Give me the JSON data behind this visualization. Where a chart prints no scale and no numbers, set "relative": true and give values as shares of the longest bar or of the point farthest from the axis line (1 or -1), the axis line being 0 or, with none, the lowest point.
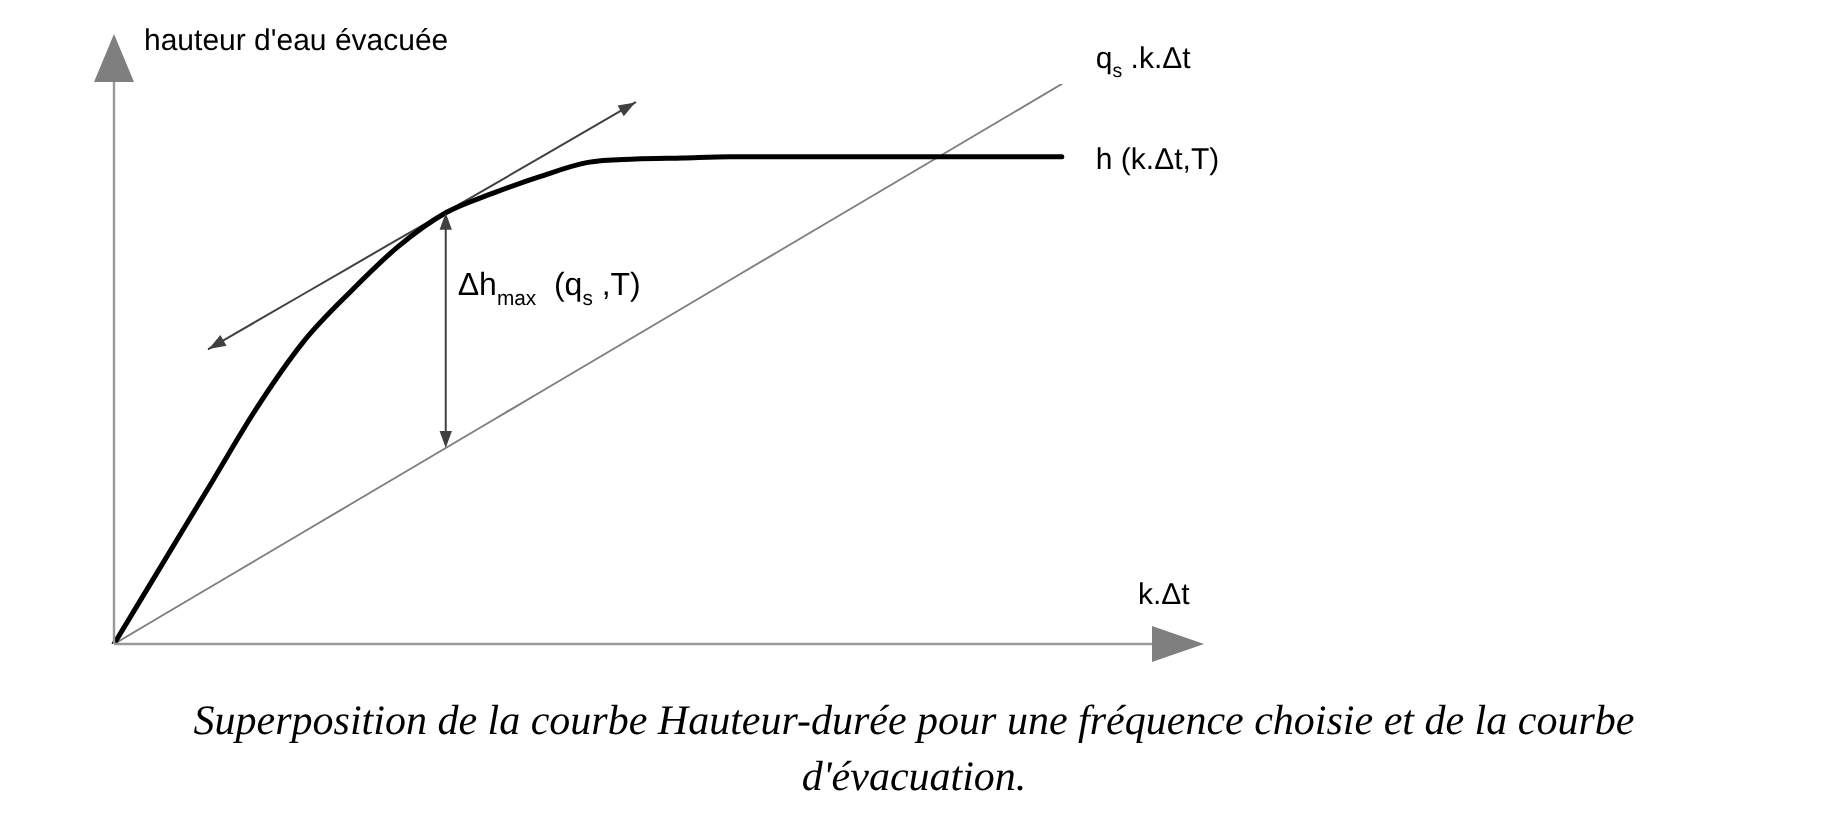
{
  "chart_data": {
    "type": "line",
    "relative": true,
    "xlabel": "k.Δt",
    "ylabel": "hauteur d'eau évacuée",
    "legend": false,
    "marker": "none",
    "categories": [
      null,
      null,
      null,
      null,
      null,
      null,
      null,
      null,
      null,
      null,
      null,
      null,
      null,
      null,
      null,
      null,
      null,
      null,
      null,
      null,
      null,
      null,
      null,
      null
    ],
    "series": [
      {
        "name": "h (k.Δt,T)",
        "color": "#000000",
        "values": [
          0,
          0.14,
          0.28,
          0.42,
          0.54,
          0.63,
          0.71,
          0.77,
          0.805,
          0.835,
          0.86,
          0.866,
          0.868,
          0.87,
          0.87,
          0.87,
          0.87,
          0.87,
          0.87,
          0.87,
          0.87,
          null,
          null,
          null
        ]
      },
      {
        "name": "q$_{s}$ .k.Δt",
        "color": "#808080",
        "values": [
          0,
          0.05,
          0.1,
          0.15,
          0.2,
          0.25,
          0.3,
          0.35,
          0.4,
          0.45,
          0.5,
          0.55,
          0.6,
          0.65,
          0.7,
          0.75,
          0.8,
          0.85,
          0.9,
          0.95,
          1,
          null,
          null,
          null
        ]
      },
      {
        "color": "#404040",
        "values": [
          null,
          null,
          0.527,
          0.576,
          0.625,
          0.674,
          0.723,
          0.771,
          0.82,
          0.869,
          0.918,
          0.967,
          null,
          null,
          null,
          null,
          null,
          null,
          null,
          null,
          null,
          null,
          null,
          null
        ]
      }
    ],
    "annotations": [
      "Δh$_{max}$  (q$_{s}$ ,T)",
      "Superposition de la courbe Hauteur-durée pour une fréquence choisie et de la courbe d'évacuation."
    ]
  }
}
